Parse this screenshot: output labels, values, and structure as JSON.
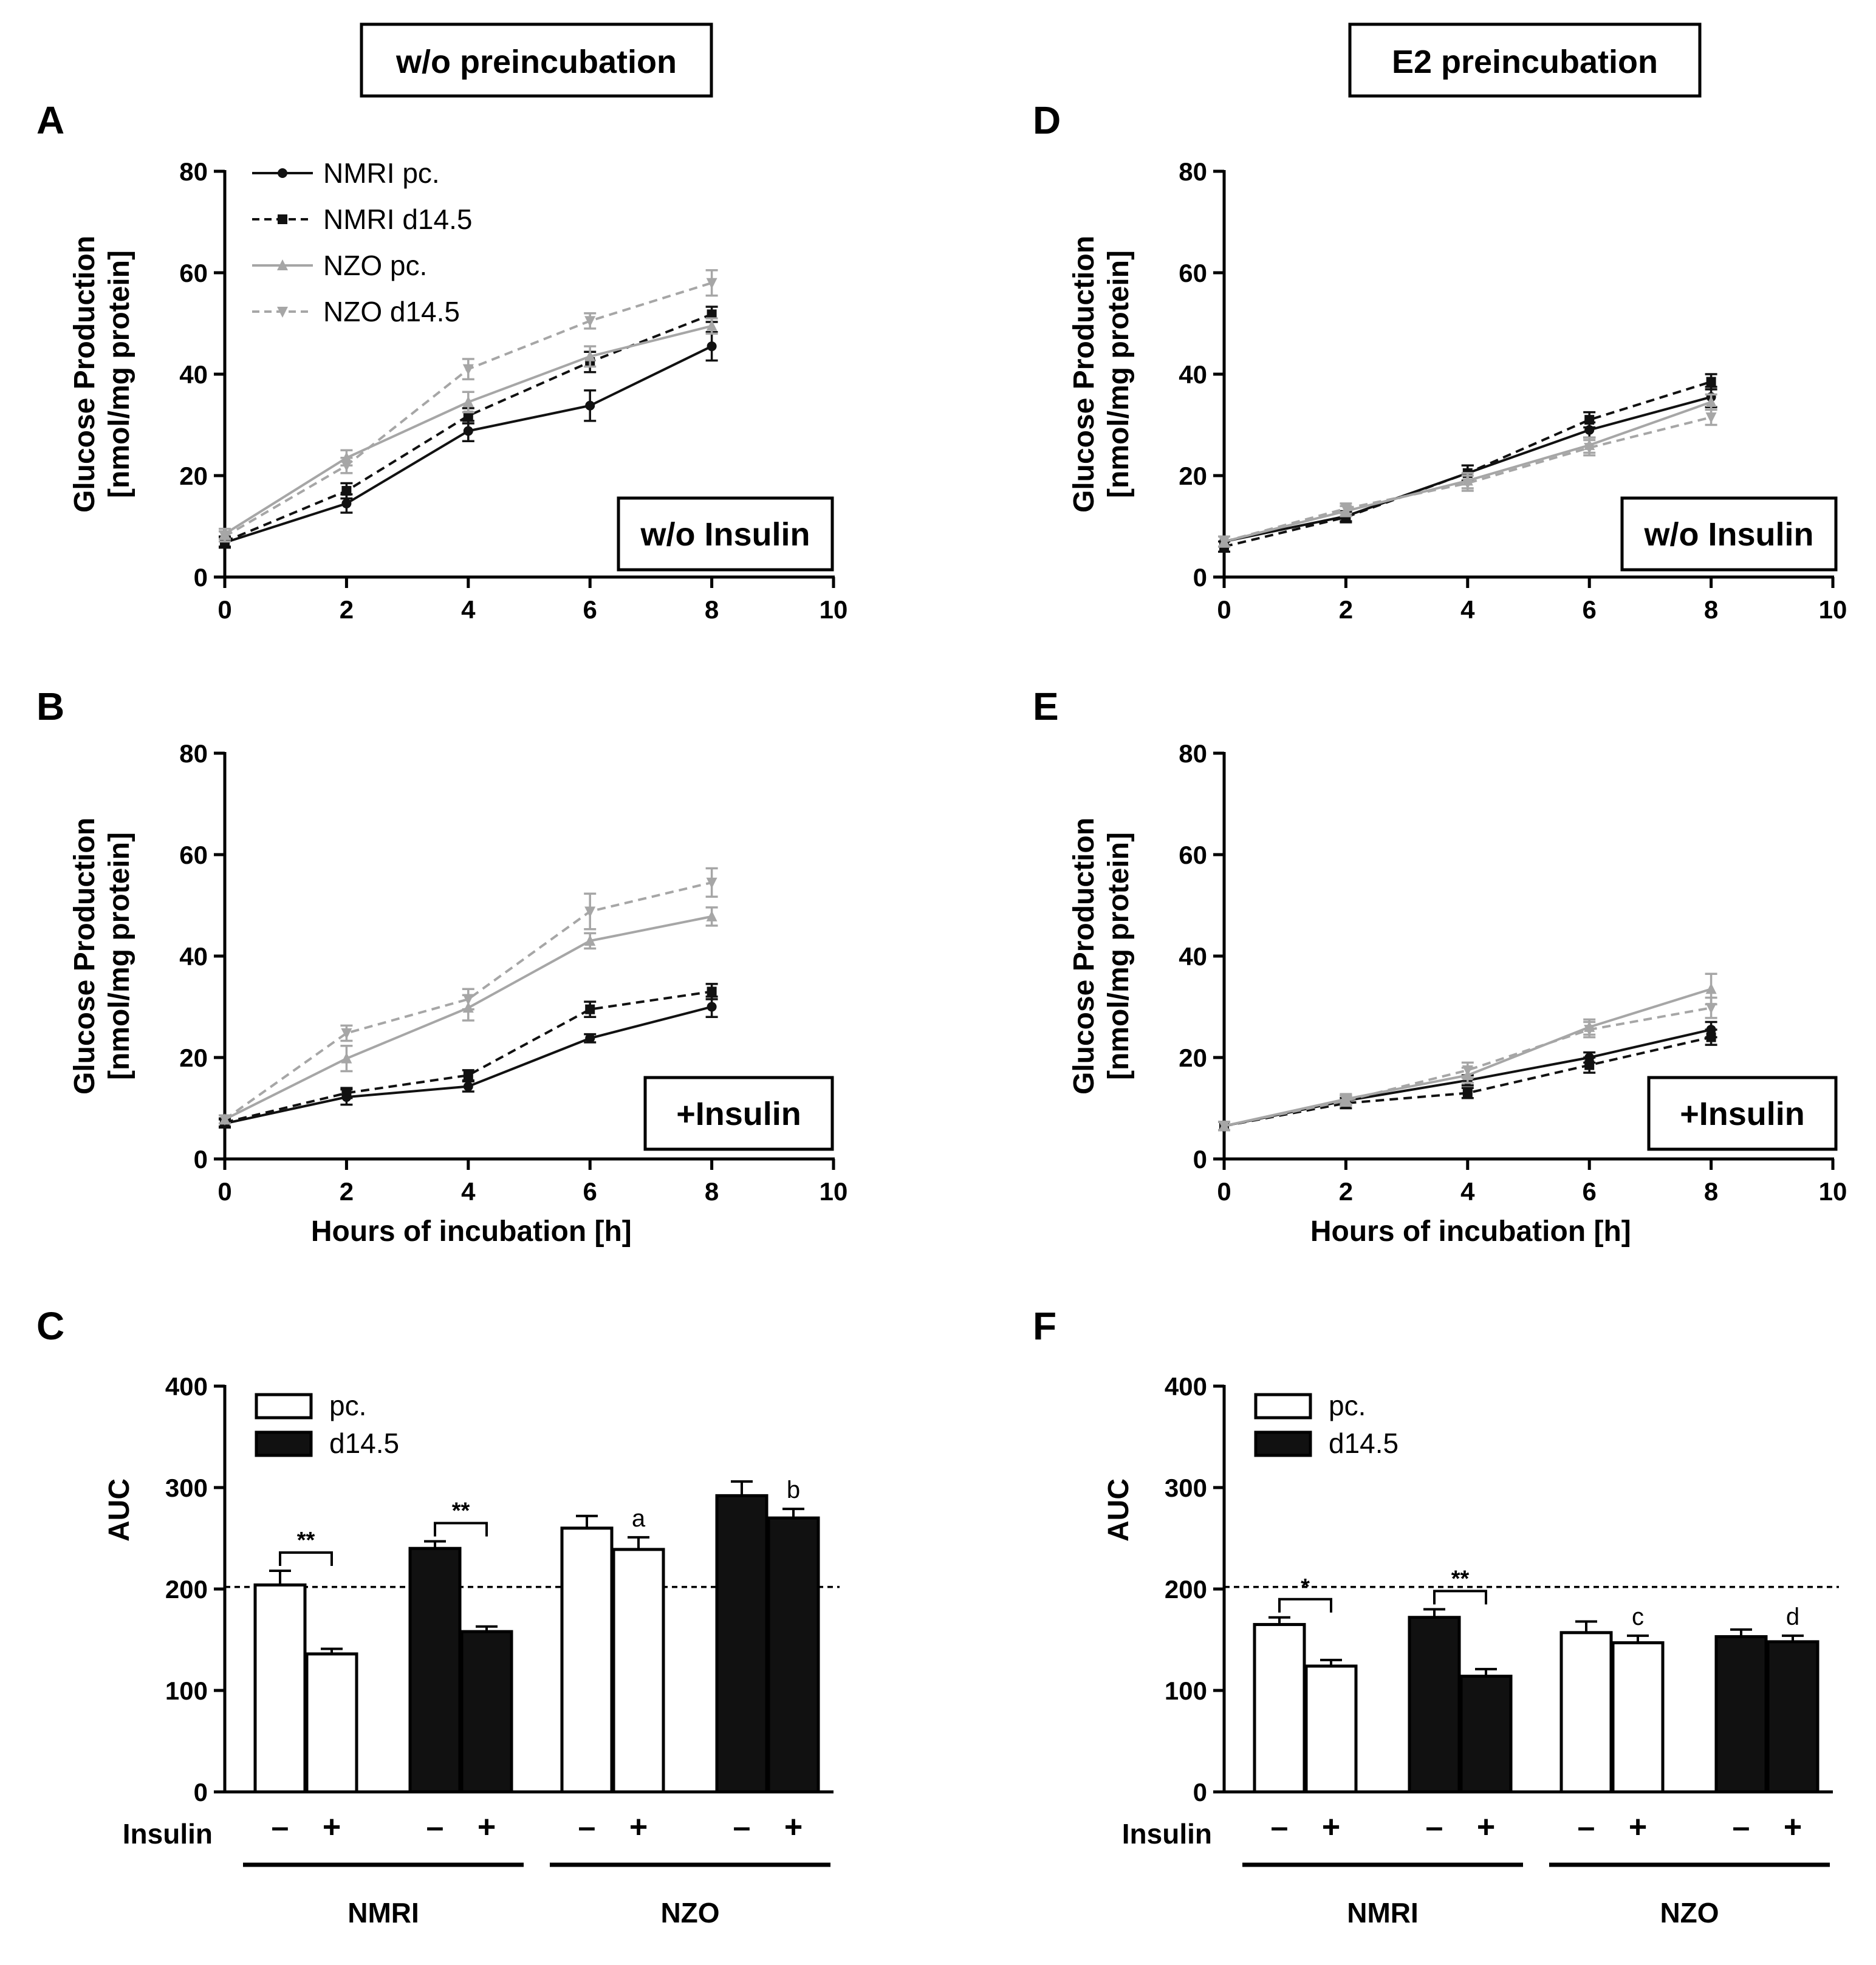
{
  "section_titles": {
    "left": "w/o preincubation",
    "right": "E2 preincubation"
  },
  "line_panel_common": {
    "ylabel_line1": "Glucose Production",
    "ylabel_line2": "[nmol/mg protein]",
    "xlabel": "Hours of incubation [h]",
    "x_ticks": [
      "0",
      "2",
      "4",
      "6",
      "8",
      "10"
    ],
    "y_ticks": [
      "0",
      "20",
      "40",
      "60",
      "80"
    ],
    "xlim": [
      0,
      10
    ],
    "ylim": [
      0,
      80
    ]
  },
  "legend_lines": [
    "NMRI pc.",
    "NMRI d14.5",
    "NZO pc.",
    "NZO d14.5"
  ],
  "bar_panel_common": {
    "ylabel": "AUC",
    "y_ticks": [
      "0",
      "100",
      "200",
      "300",
      "400"
    ],
    "ylim": [
      0,
      400
    ],
    "reference_line": 202,
    "insulin_label": "Insulin",
    "minus": "–",
    "plus": "+",
    "groups": [
      "NMRI",
      "NZO"
    ]
  },
  "legend_bars": [
    "pc.",
    "d14.5"
  ],
  "colors": {
    "black": "#111111",
    "grey": "#a6a6a6",
    "white": "#ffffff"
  },
  "chart_data": [
    {
      "panel": "A",
      "type": "line",
      "tag": "w/o Insulin",
      "xlabel": "",
      "ylabel": "Glucose Production [nmol/mg protein]",
      "xlim": [
        0,
        10
      ],
      "ylim": [
        0,
        80
      ],
      "x": [
        0,
        2,
        4,
        6,
        8
      ],
      "series": [
        {
          "name": "NMRI pc.",
          "values": [
            6.8,
            14.5,
            28.8,
            33.8,
            45.5
          ],
          "err": [
            1,
            1.8,
            2,
            3,
            2.8
          ]
        },
        {
          "name": "NMRI d14.5",
          "values": [
            7,
            17,
            31.8,
            42.4,
            51.8
          ],
          "err": [
            1,
            1.5,
            1.5,
            2,
            1.5
          ]
        },
        {
          "name": "NZO pc.",
          "values": [
            8.5,
            23.5,
            34.5,
            43.5,
            49.5
          ],
          "err": [
            1,
            1.5,
            2,
            2,
            1.5
          ]
        },
        {
          "name": "NZO d14.5",
          "values": [
            8,
            22,
            41,
            50.5,
            58
          ],
          "err": [
            1,
            1.5,
            2,
            1.5,
            2.5
          ]
        }
      ]
    },
    {
      "panel": "B",
      "type": "line",
      "tag": "+Insulin",
      "xlabel": "Hours of incubation [h]",
      "ylabel": "Glucose Production [nmol/mg protein]",
      "xlim": [
        0,
        10
      ],
      "ylim": [
        0,
        80
      ],
      "x": [
        0,
        2,
        4,
        6,
        8
      ],
      "series": [
        {
          "name": "NMRI pc.",
          "values": [
            7,
            12.2,
            14.3,
            23.8,
            30
          ],
          "err": [
            0.8,
            1.5,
            1,
            0.8,
            2
          ]
        },
        {
          "name": "NMRI d14.5",
          "values": [
            7.2,
            13,
            16.5,
            29.5,
            33
          ],
          "err": [
            0.8,
            1,
            1,
            1.5,
            1.5
          ]
        },
        {
          "name": "NZO pc.",
          "values": [
            7.8,
            19.8,
            29.8,
            43,
            47.8
          ],
          "err": [
            0.8,
            2.5,
            2.5,
            1.5,
            1.8
          ]
        },
        {
          "name": "NZO d14.5",
          "values": [
            7.8,
            24.8,
            31.5,
            48.8,
            54.5
          ],
          "err": [
            0.8,
            1.5,
            2,
            3.5,
            2.8
          ]
        }
      ]
    },
    {
      "panel": "C",
      "type": "bar",
      "ylabel": "AUC",
      "ylim": [
        0,
        400
      ],
      "reference_line": 202,
      "categories": [
        "NMRI pc. −",
        "NMRI pc. +",
        "NMRI d14.5 −",
        "NMRI d14.5 +",
        "NZO pc. −",
        "NZO pc. +",
        "NZO d14.5 −",
        "NZO d14.5 +"
      ],
      "values": [
        204,
        136,
        240,
        158,
        260,
        239,
        292,
        270
      ],
      "err": [
        14,
        5,
        7,
        5,
        12,
        12,
        14,
        9
      ],
      "fill": [
        "white",
        "white",
        "black",
        "black",
        "white",
        "white",
        "black",
        "black"
      ],
      "annotations": [
        {
          "text": "**",
          "between": [
            0,
            1
          ]
        },
        {
          "text": "**",
          "between": [
            2,
            3
          ]
        },
        {
          "text": "a",
          "bar": 5
        },
        {
          "text": "b",
          "bar": 7
        }
      ]
    },
    {
      "panel": "D",
      "type": "line",
      "tag": "w/o Insulin",
      "xlabel": "",
      "ylabel": "Glucose Production [nmol/mg protein]",
      "xlim": [
        0,
        10
      ],
      "ylim": [
        0,
        80
      ],
      "x": [
        0,
        2,
        4,
        6,
        8
      ],
      "series": [
        {
          "name": "NMRI pc.",
          "values": [
            7,
            12,
            20.5,
            29,
            35.5
          ],
          "err": [
            1,
            1,
            1.5,
            1.5,
            2
          ]
        },
        {
          "name": "NMRI d14.5",
          "values": [
            6,
            11.8,
            20.5,
            31,
            38.5
          ],
          "err": [
            1,
            1,
            1.5,
            1.5,
            1.5
          ]
        },
        {
          "name": "NZO pc.",
          "values": [
            7,
            13,
            19,
            26,
            34.5
          ],
          "err": [
            1,
            1,
            1.5,
            1.5,
            1.5
          ]
        },
        {
          "name": "NZO d14.5",
          "values": [
            7,
            13.5,
            18.5,
            25.5,
            31.5
          ],
          "err": [
            1,
            1,
            1.5,
            1.5,
            1.5
          ]
        }
      ]
    },
    {
      "panel": "E",
      "type": "line",
      "tag": "+Insulin",
      "xlabel": "Hours of incubation [h]",
      "ylabel": "Glucose Production [nmol/mg protein]",
      "xlim": [
        0,
        10
      ],
      "ylim": [
        0,
        80
      ],
      "x": [
        0,
        2,
        4,
        6,
        8
      ],
      "series": [
        {
          "name": "NMRI pc.",
          "values": [
            6.5,
            11.5,
            15.5,
            20,
            25.5
          ],
          "err": [
            0.8,
            1,
            1,
            1,
            1.5
          ]
        },
        {
          "name": "NMRI d14.5",
          "values": [
            6.5,
            11,
            13,
            18.5,
            24
          ],
          "err": [
            0.8,
            1,
            1,
            1.5,
            1.5
          ]
        },
        {
          "name": "NZO pc.",
          "values": [
            6.5,
            11.8,
            16.5,
            26,
            33.5
          ],
          "err": [
            0.8,
            1,
            1.5,
            1.5,
            3
          ]
        },
        {
          "name": "NZO d14.5",
          "values": [
            6.5,
            11.5,
            17.5,
            25.5,
            29.8
          ],
          "err": [
            0.8,
            1,
            1.5,
            1.5,
            2
          ]
        }
      ]
    },
    {
      "panel": "F",
      "type": "bar",
      "ylabel": "AUC",
      "ylim": [
        0,
        400
      ],
      "reference_line": 202,
      "categories": [
        "NMRI pc. −",
        "NMRI pc. +",
        "NMRI d14.5 −",
        "NMRI d14.5 +",
        "NZO pc. −",
        "NZO pc. +",
        "NZO d14.5 −",
        "NZO d14.5 +"
      ],
      "values": [
        165,
        124,
        172,
        114,
        157,
        147,
        153,
        148
      ],
      "err": [
        7,
        6,
        8,
        7,
        11,
        7,
        7,
        6
      ],
      "fill": [
        "white",
        "white",
        "black",
        "black",
        "white",
        "white",
        "black",
        "black"
      ],
      "annotations": [
        {
          "text": "*",
          "between": [
            0,
            1
          ]
        },
        {
          "text": "**",
          "between": [
            2,
            3
          ]
        },
        {
          "text": "c",
          "bar": 5
        },
        {
          "text": "d",
          "bar": 7
        }
      ]
    }
  ]
}
